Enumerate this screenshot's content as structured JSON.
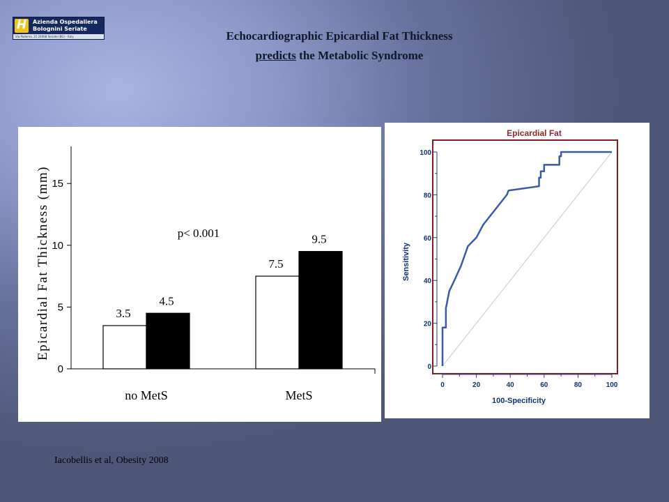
{
  "logo": {
    "name_line1": "Azienda Ospedaliera",
    "name_line2": "Bolognini Seriate",
    "address": "Via Paderno, 21   24068 Seriate (BG) - Italy",
    "colors": {
      "background": "#14295f",
      "mark": "#f2c21b"
    }
  },
  "title": {
    "line1": "Echocardiographic Epicardial Fat Thickness",
    "line2_emphasis": "predicts",
    "line2_rest": " the Metabolic Syndrome"
  },
  "citation": "Iacobellis et al, Obesity 2008",
  "chart_data": [
    {
      "type": "bar",
      "title": "",
      "xlabel": "",
      "ylabel": "Epicardial Fat Thickness (mm)",
      "ylim": [
        0,
        18
      ],
      "yticks": [
        0,
        5,
        10,
        15
      ],
      "categories": [
        "no MetS",
        "MetS"
      ],
      "series": [
        {
          "values": [
            3.5,
            7.5
          ],
          "color": "#ffffff"
        },
        {
          "values": [
            4.5,
            9.5
          ],
          "color": "#000000"
        }
      ],
      "data_labels": [
        [
          "3.5",
          "7.5"
        ],
        [
          "4.5",
          "9.5"
        ]
      ],
      "annotation": "p< 0.001",
      "grid": false
    },
    {
      "type": "line",
      "title": "Epicardial Fat",
      "xlabel": "100-Specificity",
      "ylabel": "Sensitivity",
      "xlim": [
        0,
        100
      ],
      "ylim": [
        0,
        100
      ],
      "xticks": [
        0,
        20,
        40,
        60,
        80,
        100
      ],
      "yticks": [
        0,
        20,
        40,
        60,
        80,
        100
      ],
      "grid": false,
      "series": [
        {
          "color": "#3a5aa8",
          "x": [
            0,
            0,
            2,
            2,
            3,
            4,
            7,
            11,
            15,
            20,
            24,
            28,
            33,
            38,
            39,
            57,
            57,
            58,
            58,
            60,
            60,
            69,
            69,
            70,
            70,
            100
          ],
          "y": [
            0,
            18,
            18,
            27,
            31,
            35,
            40,
            47,
            56,
            60,
            66,
            70,
            75,
            80,
            82,
            84,
            88,
            88,
            91,
            91,
            94,
            94,
            98,
            98,
            100,
            100
          ]
        },
        {
          "color": "#c8c8c8",
          "x": [
            0,
            100
          ],
          "y": [
            0,
            100
          ]
        }
      ],
      "colors": {
        "frame": "#7a1f1f",
        "axis": "#2a3f80"
      }
    }
  ]
}
